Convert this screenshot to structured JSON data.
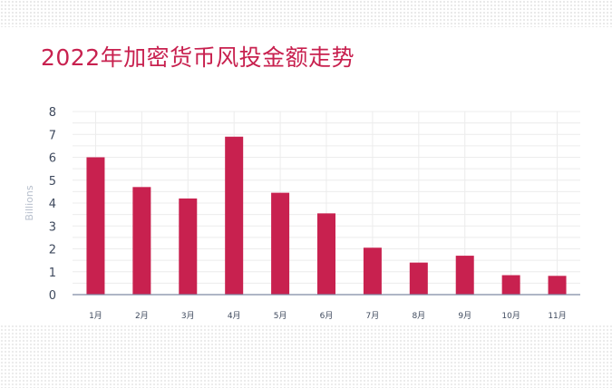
{
  "title": "2022年加密货币风投金额走势",
  "chart_data": {
    "type": "bar",
    "title": "2022年加密货币风投金额走势",
    "xlabel": "",
    "ylabel": "Billions",
    "categories": [
      "1月",
      "2月",
      "3月",
      "4月",
      "5月",
      "6月",
      "7月",
      "8月",
      "9月",
      "10月",
      "11月"
    ],
    "values": [
      6.0,
      4.7,
      4.2,
      6.9,
      4.45,
      3.55,
      2.05,
      1.4,
      1.7,
      0.85,
      0.82
    ],
    "y_tick_labels": [
      "0",
      "1",
      "2",
      "3",
      "4",
      "5",
      "6",
      "7",
      "8"
    ],
    "ylim": [
      0,
      8
    ],
    "grid": true,
    "legend": "none",
    "bar_color": "#c8214f",
    "grid_color": "#ececec",
    "axis_color": "#7f8aa3"
  }
}
